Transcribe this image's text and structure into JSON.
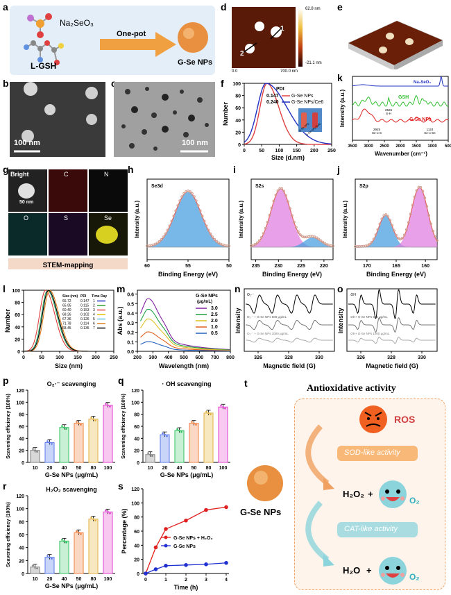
{
  "panel_letters": [
    "a",
    "b",
    "c",
    "d",
    "e",
    "f",
    "g",
    "h",
    "i",
    "j",
    "k",
    "l",
    "m",
    "n",
    "o",
    "p",
    "q",
    "r",
    "s",
    "t"
  ],
  "a": {
    "reagent1": "Na₂SeO₃",
    "reagent2": "L-GSH",
    "arrow": "One-pot",
    "product": "G-Se NPs"
  },
  "b": {
    "scale": "100 nm"
  },
  "c": {
    "scale": "100 nm"
  },
  "d": {
    "max": "62.8 nm",
    "min": "-21.1 nm",
    "x0": "0.0",
    "x1": "700.0 nm",
    "mark1": "1",
    "mark2": "2"
  },
  "f": {
    "pdi_title": "PDI",
    "ylabel": "Number",
    "xlabel": "Size (d.nm)",
    "legend": [
      {
        "pdi": "0.147",
        "name": "G-Se NPs",
        "color": "#e04040"
      },
      {
        "pdi": "0.240",
        "name": "G-Se NPs/Ce6",
        "color": "#2030c0"
      }
    ],
    "vial1": "G-Se NPs",
    "vial2": "G-Se NPs/Ce6",
    "xticks": [
      "0",
      "50",
      "100",
      "150",
      "200",
      "250"
    ],
    "yticks": [
      "0",
      "20",
      "40",
      "60",
      "80",
      "100"
    ]
  },
  "k": {
    "ylabel": "Intensity (a.u.)",
    "xlabel": "Wavenumber (cm⁻¹)",
    "series": [
      {
        "name": "Na₂SeO₃",
        "color": "#2030c0"
      },
      {
        "name": "GSH",
        "color": "#30c030"
      },
      {
        "name": "G-Se NPs",
        "color": "#e02020"
      }
    ],
    "ann": [
      "2526",
      "S-H",
      "2925",
      "Se-o-S",
      "1124",
      "Se-o-Se"
    ],
    "xticks": [
      "3500",
      "3000",
      "2500",
      "2000",
      "1500",
      "1000",
      "500"
    ]
  },
  "g": {
    "cells": [
      "Bright",
      "C",
      "N",
      "O",
      "S",
      "Se"
    ],
    "scale": "50 nm",
    "caption": "STEM-mapping"
  },
  "h": {
    "title": "Se3d",
    "ylabel": "Intensity (a.u.)",
    "xlabel": "Binding Energy (eV)",
    "xticks": [
      "60",
      "55",
      "50"
    ]
  },
  "i": {
    "title": "S2s",
    "ylabel": "Intensity (a.u.)",
    "xlabel": "Binding Energy (eV)",
    "xticks": [
      "235",
      "230",
      "225",
      "220"
    ]
  },
  "j": {
    "title": "S2p",
    "ylabel": "Intensity (a.u.)",
    "xlabel": "Binding Energy (eV)",
    "xticks": [
      "170",
      "165",
      "160"
    ]
  },
  "l": {
    "ylabel": "Number",
    "xlabel": "Size (nm)",
    "headers": [
      "Size (nm)",
      "PDI",
      "Time Day"
    ],
    "rows": [
      [
        "66.72",
        "0.147",
        "1"
      ],
      [
        "65.95",
        "0.115",
        "2"
      ],
      [
        "60.40",
        "0.153",
        "3"
      ],
      [
        "68.26",
        "0.102",
        "4"
      ],
      [
        "67.36",
        "0.126",
        "5"
      ],
      [
        "71.78",
        "0.114",
        "6"
      ],
      [
        "68.45",
        "0.135",
        "7"
      ]
    ],
    "colors": [
      "#2030c0",
      "#30a030",
      "#e04040",
      "#e0c000",
      "#60c0e0",
      "#e08020",
      "#000000"
    ],
    "xticks": [
      "0",
      "50",
      "100",
      "150",
      "200",
      "250"
    ],
    "yticks": [
      "0",
      "20",
      "40",
      "60",
      "80",
      "100"
    ]
  },
  "m": {
    "ylabel": "Abs (a.u.)",
    "xlabel": "Wavelength (nm)",
    "legend_title": "G-Se NPs",
    "legend_unit": "(μg/mL)",
    "series": [
      {
        "name": "3.0",
        "color": "#8020a0"
      },
      {
        "name": "2.5",
        "color": "#20a040"
      },
      {
        "name": "2.0",
        "color": "#e0c020"
      },
      {
        "name": "1.0",
        "color": "#e06020"
      },
      {
        "name": "0.5",
        "color": "#2060c0"
      }
    ],
    "xticks": [
      "200",
      "300",
      "400",
      "500",
      "600",
      "700",
      "800"
    ],
    "yticks": [
      "0.0",
      "0.1",
      "0.2",
      "0.3",
      "0.4",
      "0.5",
      "0.6"
    ]
  },
  "n": {
    "ylabel": "Intensity",
    "xlabel": "Magnetic field (G)",
    "labels": [
      "O₂·⁻",
      "O₂·⁻ + G-Se NPs 500 μg/mL",
      "O₂·⁻ + G-Se NPs 1000 μg/mL"
    ],
    "xticks": [
      "326",
      "328",
      "330"
    ]
  },
  "o": {
    "ylabel": "Intensity",
    "xlabel": "Magnetic field (G)",
    "labels": [
      ".OH",
      ".OH+ G-Se NPs 500 μg/mL",
      ".OH+ G-Se NPs 1000 μg/mL"
    ],
    "xticks": [
      "326",
      "328",
      "330"
    ]
  },
  "p": {
    "title": "O₂·⁻ scavenging",
    "ylabel": "Scavening efficiency (100%)",
    "xlabel": "G-Se NPs (μg/mL)",
    "categories": [
      "10",
      "20",
      "40",
      "50",
      "80",
      "100"
    ],
    "values": [
      20,
      33,
      58,
      65,
      72,
      95
    ],
    "yticks": [
      "0",
      "20",
      "40",
      "60",
      "80",
      "100",
      "120"
    ]
  },
  "q": {
    "title": "· OH scavenging",
    "ylabel": "Scavening efficiency (100%)",
    "xlabel": "G-Se NPs (μg/mL)",
    "categories": [
      "10",
      "20",
      "40",
      "50",
      "80",
      "100"
    ],
    "values": [
      13,
      46,
      53,
      65,
      82,
      92
    ],
    "yticks": [
      "0",
      "20",
      "40",
      "60",
      "80",
      "100",
      "120"
    ]
  },
  "r": {
    "title": "H₂O₂ scavenging",
    "ylabel": "Scavening efficiency (100%)",
    "xlabel": "G-Se NPs (μg/mL)",
    "categories": [
      "10",
      "20",
      "40",
      "50",
      "80",
      "100"
    ],
    "values": [
      10,
      25,
      50,
      63,
      84,
      95
    ],
    "yticks": [
      "0",
      "20",
      "40",
      "60",
      "80",
      "100",
      "120"
    ]
  },
  "bar_colors": [
    "#808080",
    "#5a78e8",
    "#30c060",
    "#f08040",
    "#e0b040",
    "#e040d0"
  ],
  "bar_fill": [
    "#d8d8d8",
    "#c8d4f8",
    "#c8f0d4",
    "#fcd8c4",
    "#f8e8c0",
    "#f8c8f0"
  ],
  "s": {
    "ylabel": "Percentage (%)",
    "xlabel": "Time (h)",
    "series": [
      {
        "name": "G-Se NPs + H₂O₂",
        "color": "#e02020",
        "x": [
          0,
          0.5,
          1,
          2,
          3,
          4
        ],
        "y": [
          0,
          37,
          63,
          75,
          90,
          94
        ]
      },
      {
        "name": "G-Se NPs",
        "color": "#2030d0",
        "x": [
          0,
          0.5,
          1,
          2,
          3,
          4
        ],
        "y": [
          0,
          6,
          11,
          12,
          13,
          15
        ]
      }
    ],
    "xticks": [
      "0",
      "1",
      "2",
      "3",
      "4"
    ],
    "yticks": [
      "0",
      "20",
      "40",
      "60",
      "80",
      "100",
      "120"
    ]
  },
  "t": {
    "title": "Antioxidative activity",
    "ros": "ROS",
    "sod": "SOD-like activity",
    "cat": "CAT-like activity",
    "product": "G-Se NPs",
    "r1a": "H₂O₂",
    "r1b": "O₂",
    "r2a": "H₂O",
    "r2b": "O₂",
    "plus": "+"
  }
}
